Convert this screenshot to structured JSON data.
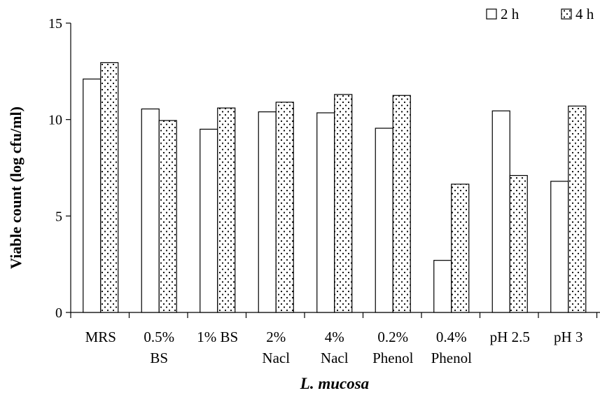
{
  "chart_data": {
    "type": "bar",
    "categories": [
      [
        "MRS"
      ],
      [
        "0.5%",
        "BS"
      ],
      [
        "1% BS"
      ],
      [
        "2%",
        "Nacl"
      ],
      [
        "4%",
        "Nacl"
      ],
      [
        "0.2%",
        "Phenol"
      ],
      [
        "0.4%",
        "Phenol"
      ],
      [
        "pH 2.5"
      ],
      [
        "pH 3"
      ]
    ],
    "series": [
      {
        "name": "2 h",
        "pattern": "white",
        "values": [
          12.1,
          10.55,
          9.5,
          10.4,
          10.35,
          9.55,
          2.7,
          10.45,
          6.8
        ]
      },
      {
        "name": "4 h",
        "pattern": "dotted",
        "values": [
          12.95,
          9.95,
          10.6,
          10.9,
          11.3,
          11.25,
          6.65,
          7.1,
          10.7
        ]
      }
    ],
    "xlabel": "L. mucosa",
    "ylabel": "Viable count (log cfu/ml)",
    "ylim": [
      0,
      15
    ],
    "yticks": [
      0,
      5,
      10,
      15
    ],
    "grid": false,
    "legend": "top-right",
    "colors": {
      "bar_fill": "#ffffff",
      "bar_stroke": "#000000",
      "dot": "#000000"
    }
  }
}
